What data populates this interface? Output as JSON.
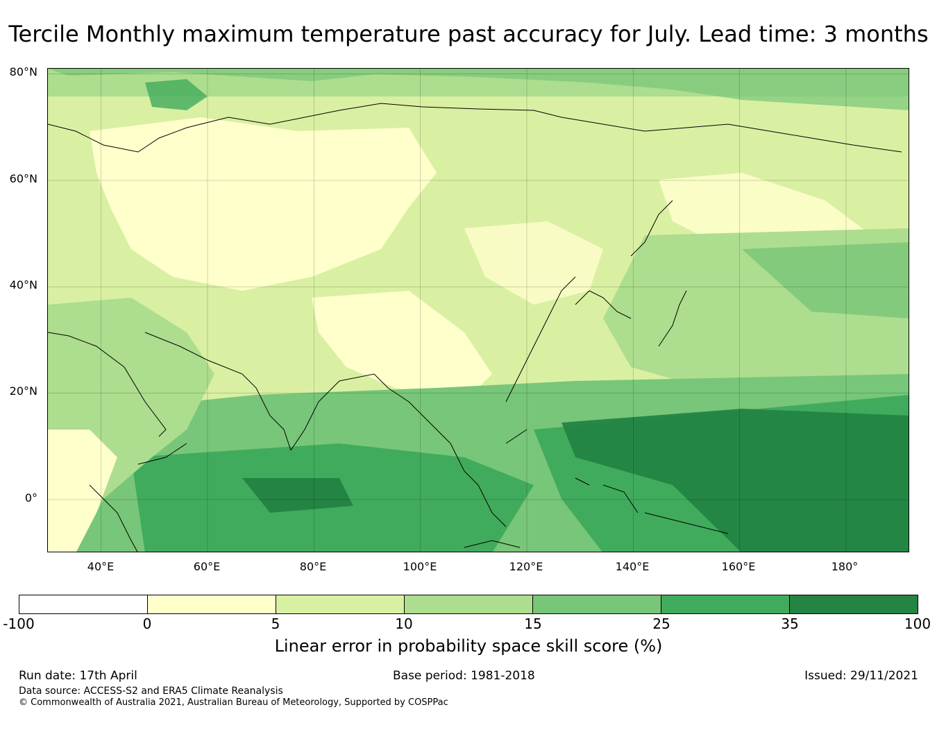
{
  "title": "Tercile Monthly maximum temperature past accuracy for July. Lead time: 3 months",
  "map": {
    "lat_labels": [
      "80°N",
      "60°N",
      "40°N",
      "20°N",
      "0°"
    ],
    "lon_labels": [
      "40°E",
      "60°E",
      "80°E",
      "100°E",
      "120°E",
      "140°E",
      "160°E",
      "180°"
    ],
    "extent": {
      "lon_min": 30,
      "lon_max": 192,
      "lat_min": -10,
      "lat_max": 81
    }
  },
  "colorbar": {
    "ticks": [
      "-100",
      "0",
      "5",
      "10",
      "15",
      "25",
      "35",
      "100"
    ],
    "colors": [
      "#ffffff",
      "#ffffcc",
      "#d9f0a3",
      "#addd8e",
      "#78c679",
      "#41ab5d",
      "#238443"
    ],
    "label": "Linear error in probability space skill score (%)"
  },
  "footer": {
    "run_date": "Run date: 17th April",
    "base_period": "Base period: 1981-2018",
    "issued": "Issued: 29/11/2021",
    "data_source": "Data source: ACCESS-S2 and ERA5 Climate Reanalysis",
    "copyright": "© Commonwealth of Australia 2021, Australian Bureau of Meteorology, Supported by COSPPac"
  }
}
